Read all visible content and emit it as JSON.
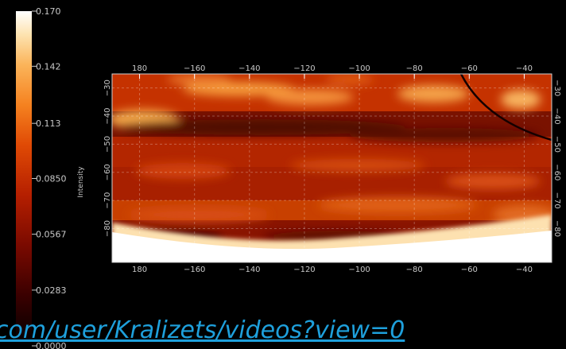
{
  "colors": {
    "background": "#000000",
    "axis_text": "#c8c8c8",
    "url_text": "#1ea0dc",
    "colormap": [
      "#000000",
      "#3a0000",
      "#7a0a00",
      "#b51f00",
      "#e04a05",
      "#f58220",
      "#fbb45a",
      "#fde3b0",
      "#ffffff"
    ]
  },
  "chart_data": {
    "type": "heatmap",
    "title": "",
    "colorbar": {
      "label": "Intensity",
      "min": 0.0,
      "max": 0.17,
      "tick_values": [
        0.17,
        0.142,
        0.113,
        0.085,
        0.0567,
        0.0283,
        0.0
      ],
      "tick_labels": [
        "0.170",
        "0.142",
        "0.113",
        "0.0850",
        "0.0567",
        "0.0283",
        "0.0000"
      ]
    },
    "x_axis": {
      "label": "",
      "range": [
        -190,
        -30
      ],
      "top_tick_values": [
        180,
        -160,
        -140,
        -120,
        -100,
        -80,
        -60,
        -40
      ],
      "top_tick_labels": [
        "180",
        "−160",
        "−140",
        "−120",
        "−100",
        "−80",
        "−60",
        "−40"
      ],
      "bottom_tick_labels": [
        "180",
        "−160",
        "−140",
        "−120",
        "−100",
        "−80",
        "−60",
        "−40"
      ]
    },
    "y_axis": {
      "label": "",
      "range": [
        -25,
        -92
      ],
      "tick_values": [
        -30,
        -40,
        -50,
        -60,
        -70,
        -80
      ],
      "left_tick_labels": [
        "−30",
        "−40",
        "−50",
        "−60",
        "−70",
        "−80"
      ],
      "right_tick_labels": [
        "−30",
        "−40",
        "−50",
        "−60",
        "−70",
        "−80"
      ]
    },
    "grid": true,
    "boundary_arc": true
  },
  "overlay": {
    "url_text": "com/user/Kralizets/videos?view=0"
  }
}
